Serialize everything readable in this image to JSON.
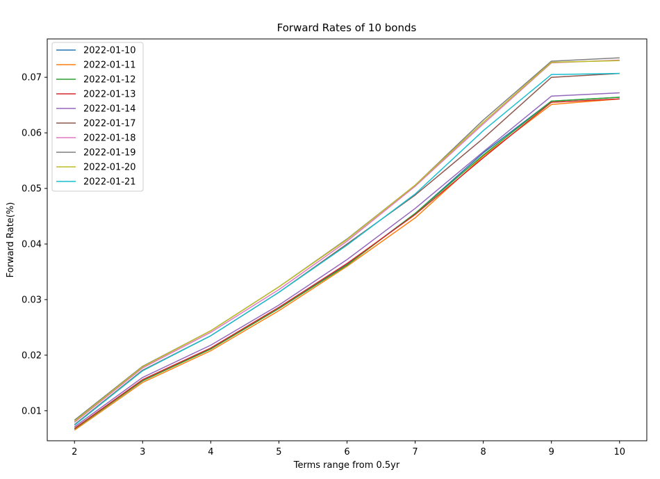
{
  "chart_data": {
    "type": "line",
    "title": "Forward Rates of 10 bonds",
    "xlabel": "Terms range from 0.5yr",
    "ylabel": "Forward Rate(%)",
    "xlim": [
      1.6,
      10.4
    ],
    "ylim": [
      0.0046,
      0.0769
    ],
    "x": [
      2,
      3,
      4,
      5,
      6,
      7,
      8,
      9,
      10
    ],
    "xticks": [
      "2",
      "3",
      "4",
      "5",
      "6",
      "7",
      "8",
      "9",
      "10"
    ],
    "yticks": [
      {
        "value": 0.01,
        "label": "0.01"
      },
      {
        "value": 0.02,
        "label": "0.02"
      },
      {
        "value": 0.03,
        "label": "0.03"
      },
      {
        "value": 0.04,
        "label": "0.04"
      },
      {
        "value": 0.05,
        "label": "0.05"
      },
      {
        "value": 0.06,
        "label": "0.06"
      },
      {
        "value": 0.07,
        "label": "0.07"
      }
    ],
    "grid": false,
    "legend_position": "top-left",
    "series": [
      {
        "name": "2022-01-10",
        "color": "#1f77b4",
        "values": [
          0.0068,
          0.0154,
          0.0212,
          0.0284,
          0.0363,
          0.0455,
          0.0564,
          0.0657,
          0.0664
        ]
      },
      {
        "name": "2022-01-11",
        "color": "#ff7f0e",
        "values": [
          0.0065,
          0.0151,
          0.0208,
          0.028,
          0.036,
          0.0447,
          0.0558,
          0.0651,
          0.0661
        ]
      },
      {
        "name": "2022-01-12",
        "color": "#2ca02c",
        "values": [
          0.0067,
          0.0154,
          0.0211,
          0.0284,
          0.0362,
          0.0455,
          0.056,
          0.0657,
          0.0664
        ]
      },
      {
        "name": "2022-01-13",
        "color": "#d62728",
        "values": [
          0.0068,
          0.0156,
          0.0213,
          0.0286,
          0.0365,
          0.0453,
          0.0555,
          0.0655,
          0.0661
        ]
      },
      {
        "name": "2022-01-14",
        "color": "#9467bd",
        "values": [
          0.0071,
          0.016,
          0.0218,
          0.029,
          0.0372,
          0.0464,
          0.0566,
          0.0666,
          0.0672
        ]
      },
      {
        "name": "2022-01-17",
        "color": "#8c564b",
        "values": [
          0.0075,
          0.0173,
          0.0235,
          0.0313,
          0.04,
          0.0488,
          0.059,
          0.07,
          0.0707
        ]
      },
      {
        "name": "2022-01-18",
        "color": "#e377c2",
        "values": [
          0.0079,
          0.0177,
          0.0241,
          0.0318,
          0.0405,
          0.0504,
          0.0616,
          0.0726,
          0.0731
        ]
      },
      {
        "name": "2022-01-19",
        "color": "#7f7f7f",
        "values": [
          0.0083,
          0.018,
          0.0244,
          0.0323,
          0.0409,
          0.0506,
          0.0623,
          0.0729,
          0.0735
        ]
      },
      {
        "name": "2022-01-20",
        "color": "#bcbd22",
        "values": [
          0.0081,
          0.0179,
          0.0244,
          0.0323,
          0.0408,
          0.0506,
          0.0619,
          0.0727,
          0.073
        ]
      },
      {
        "name": "2022-01-21",
        "color": "#17becf",
        "values": [
          0.0074,
          0.0172,
          0.0235,
          0.0313,
          0.0398,
          0.049,
          0.0604,
          0.0705,
          0.0707
        ]
      }
    ]
  }
}
